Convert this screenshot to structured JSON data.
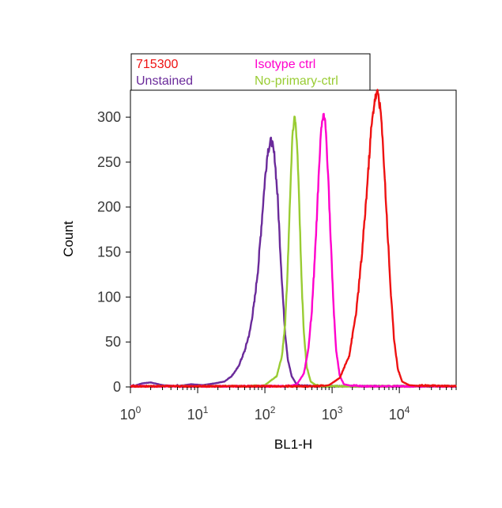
{
  "chart_data": {
    "type": "line",
    "xlabel": "BL1-H",
    "ylabel": "Count",
    "xscale": "log",
    "xlim": [
      1,
      70000
    ],
    "ylim": [
      0,
      330
    ],
    "grid": false,
    "legend_position": "top",
    "x_ticks": [
      {
        "value": 1,
        "base": "10",
        "exp": "0"
      },
      {
        "value": 10,
        "base": "10",
        "exp": "1"
      },
      {
        "value": 100,
        "base": "10",
        "exp": "2"
      },
      {
        "value": 1000,
        "base": "10",
        "exp": "3"
      },
      {
        "value": 10000,
        "base": "10",
        "exp": "4"
      }
    ],
    "y_ticks": [
      0,
      50,
      100,
      150,
      200,
      250,
      300
    ],
    "series": [
      {
        "name": "Unstained",
        "color": "#6a2a9a",
        "points": [
          [
            1,
            0
          ],
          [
            1.5,
            4
          ],
          [
            2,
            5
          ],
          [
            3,
            2
          ],
          [
            5,
            1
          ],
          [
            8,
            3
          ],
          [
            12,
            2
          ],
          [
            18,
            4
          ],
          [
            25,
            6
          ],
          [
            32,
            12
          ],
          [
            40,
            22
          ],
          [
            50,
            40
          ],
          [
            60,
            62
          ],
          [
            70,
            95
          ],
          [
            80,
            135
          ],
          [
            90,
            185
          ],
          [
            100,
            230
          ],
          [
            110,
            262
          ],
          [
            125,
            275
          ],
          [
            140,
            255
          ],
          [
            155,
            210
          ],
          [
            170,
            150
          ],
          [
            185,
            100
          ],
          [
            200,
            60
          ],
          [
            220,
            30
          ],
          [
            250,
            12
          ],
          [
            290,
            4
          ],
          [
            350,
            1
          ],
          [
            500,
            0
          ],
          [
            70000,
            0
          ]
        ]
      },
      {
        "name": "No-primary-ctrl",
        "color": "#99cc33",
        "points": [
          [
            1,
            0
          ],
          [
            60,
            0
          ],
          [
            100,
            2
          ],
          [
            150,
            12
          ],
          [
            180,
            35
          ],
          [
            200,
            70
          ],
          [
            215,
            120
          ],
          [
            230,
            180
          ],
          [
            245,
            240
          ],
          [
            260,
            285
          ],
          [
            275,
            300
          ],
          [
            290,
            290
          ],
          [
            310,
            245
          ],
          [
            330,
            185
          ],
          [
            350,
            120
          ],
          [
            380,
            60
          ],
          [
            420,
            22
          ],
          [
            480,
            6
          ],
          [
            600,
            1
          ],
          [
            700,
            0
          ],
          [
            70000,
            0
          ]
        ]
      },
      {
        "name": "Isotype ctrl",
        "color": "#ff00cc",
        "points": [
          [
            1,
            0
          ],
          [
            200,
            0
          ],
          [
            300,
            3
          ],
          [
            380,
            15
          ],
          [
            440,
            40
          ],
          [
            500,
            85
          ],
          [
            560,
            150
          ],
          [
            620,
            220
          ],
          [
            680,
            280
          ],
          [
            740,
            305
          ],
          [
            800,
            290
          ],
          [
            870,
            240
          ],
          [
            950,
            165
          ],
          [
            1050,
            90
          ],
          [
            1150,
            40
          ],
          [
            1300,
            12
          ],
          [
            1500,
            3
          ],
          [
            2000,
            1
          ],
          [
            3000,
            0
          ],
          [
            70000,
            0
          ]
        ]
      },
      {
        "name": "715300",
        "color": "#ee1111",
        "points": [
          [
            1,
            0
          ],
          [
            600,
            0
          ],
          [
            900,
            2
          ],
          [
            1300,
            10
          ],
          [
            1800,
            35
          ],
          [
            2300,
            85
          ],
          [
            2800,
            150
          ],
          [
            3300,
            220
          ],
          [
            3800,
            285
          ],
          [
            4300,
            320
          ],
          [
            4800,
            328
          ],
          [
            5300,
            305
          ],
          [
            5900,
            250
          ],
          [
            6600,
            180
          ],
          [
            7400,
            110
          ],
          [
            8300,
            55
          ],
          [
            9500,
            20
          ],
          [
            11000,
            6
          ],
          [
            14000,
            2
          ],
          [
            20000,
            1
          ],
          [
            70000,
            0
          ]
        ]
      }
    ],
    "legend": [
      {
        "label": "715300",
        "color": "#ee1111"
      },
      {
        "label": "Isotype ctrl",
        "color": "#ff00cc"
      },
      {
        "label": "Unstained",
        "color": "#6a2a9a"
      },
      {
        "label": "No-primary-ctrl",
        "color": "#99cc33"
      }
    ]
  }
}
